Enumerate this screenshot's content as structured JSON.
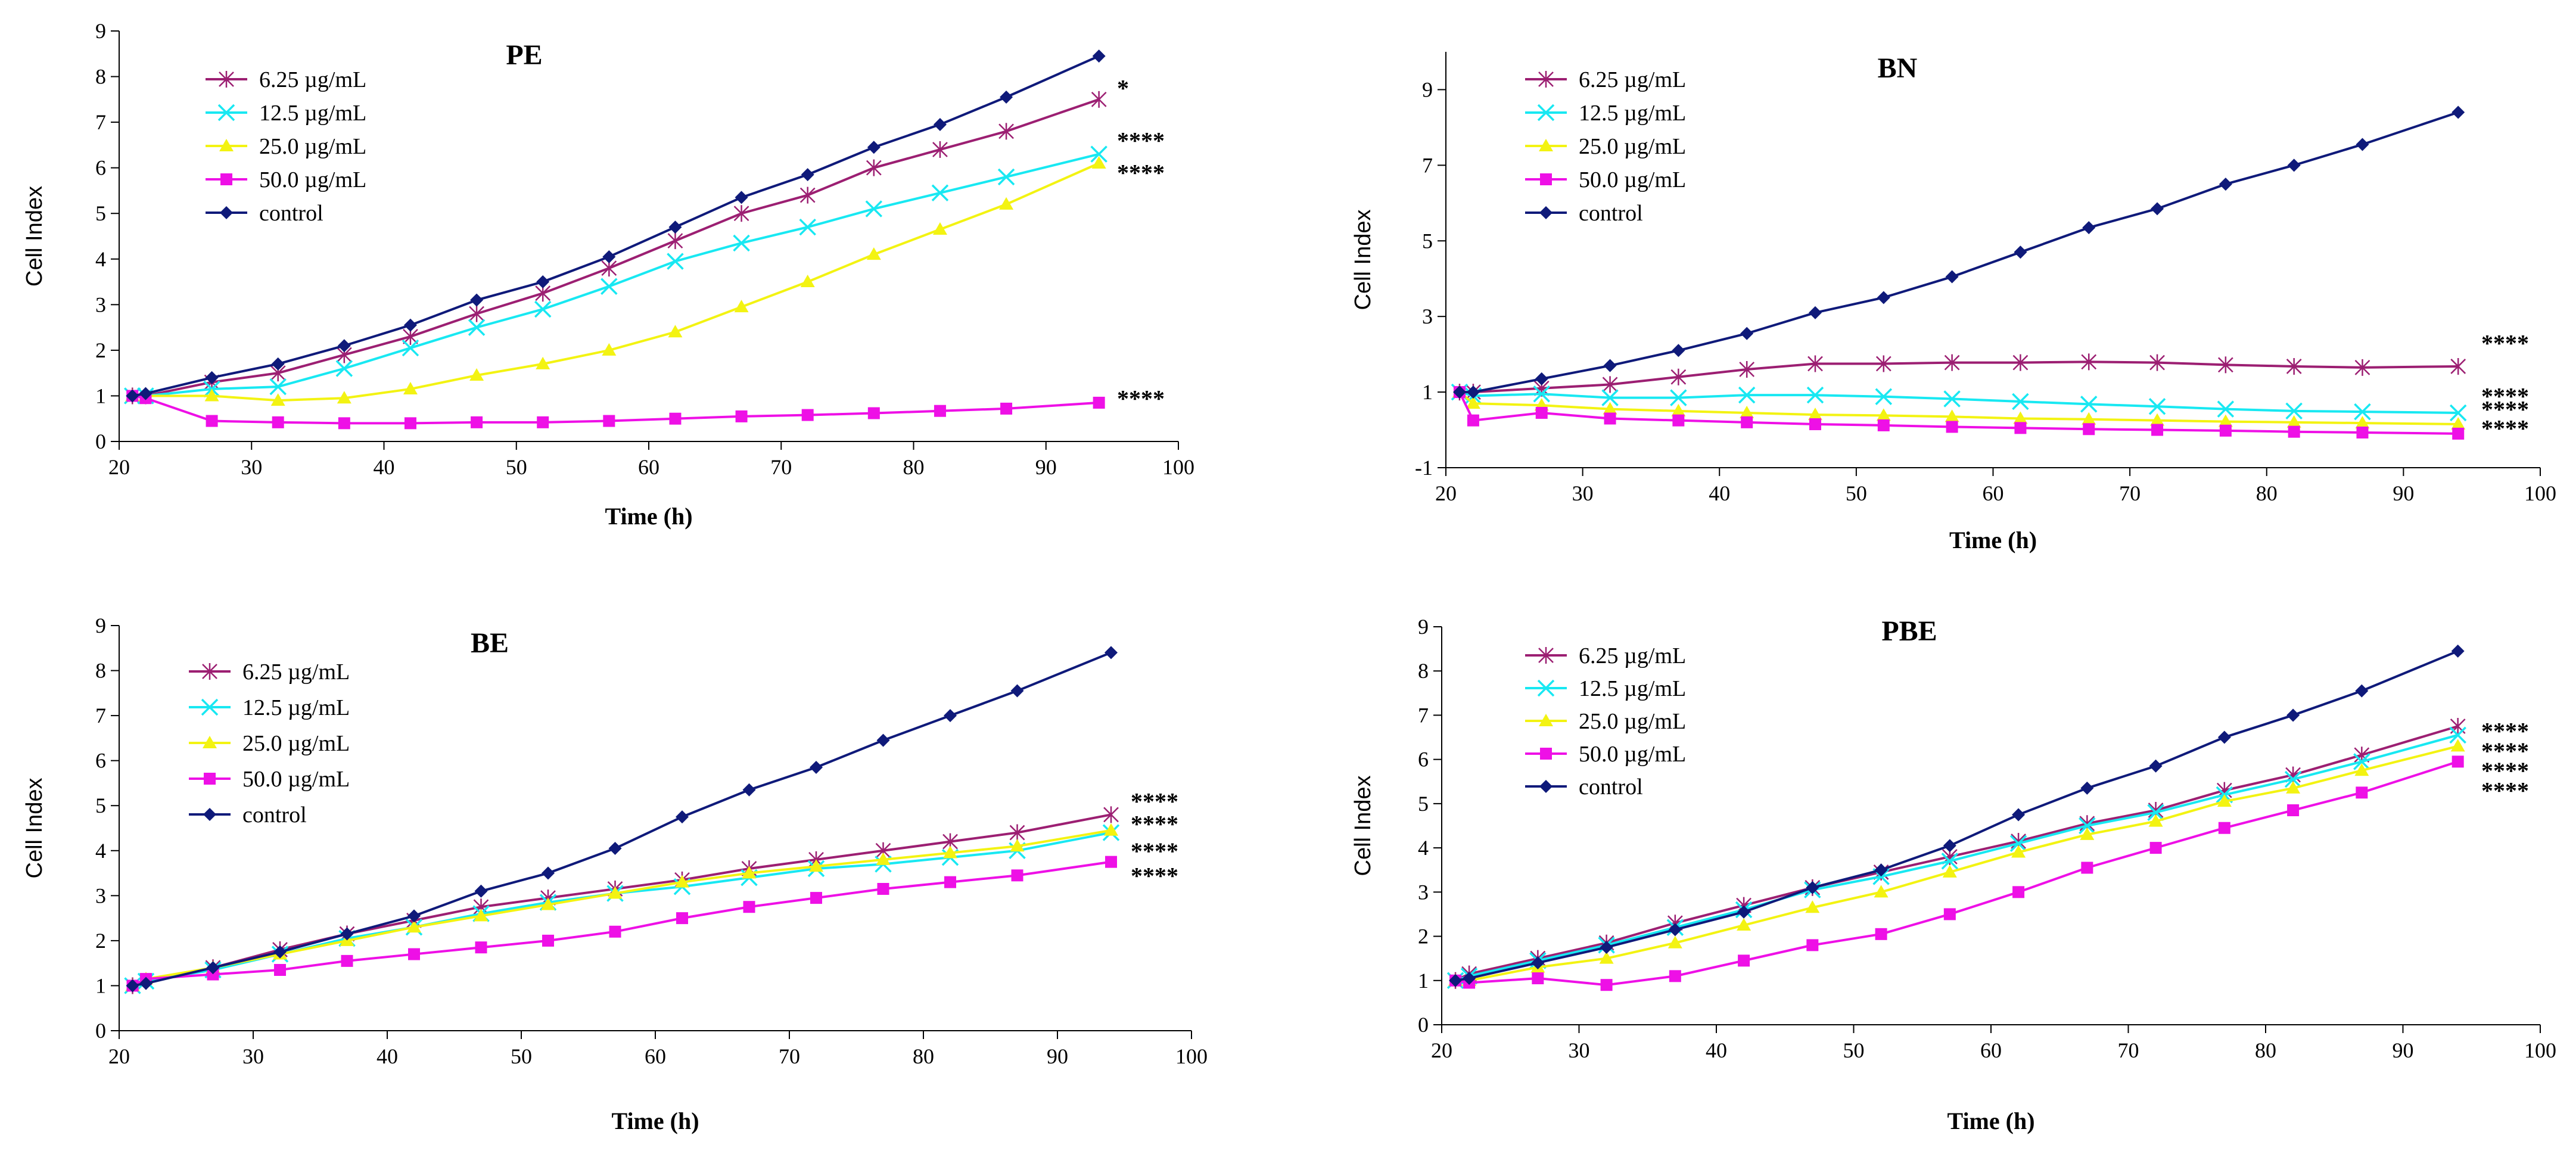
{
  "colors": {
    "6.25": "#9C1F72",
    "12.5": "#18E8F2",
    "25.0": "#F3F312",
    "50.0": "#EE10E6",
    "control": "#0F1A7A"
  },
  "chart_data": [
    {
      "type": "line",
      "title": "PE",
      "xlabel": "Time (h)",
      "ylabel": "Cell Index",
      "xlim": [
        20,
        100
      ],
      "ylim": [
        0,
        9
      ],
      "xticks": [
        "20",
        "30",
        "40",
        "50",
        "60",
        "70",
        "80",
        "90",
        "100"
      ],
      "yticks": [
        "0",
        "1",
        "2",
        "3",
        "4",
        "5",
        "6",
        "7",
        "8",
        "9"
      ],
      "x": [
        21,
        22,
        27,
        32,
        37,
        42,
        47,
        52,
        57,
        62,
        67,
        72,
        77,
        82,
        87,
        94
      ],
      "series": [
        {
          "name": "6.25 µg/mL",
          "key": "6.25",
          "marker": "star",
          "values": [
            1.0,
            1.0,
            1.3,
            1.5,
            1.9,
            2.3,
            2.8,
            3.25,
            3.8,
            4.4,
            5.0,
            5.4,
            6.0,
            6.4,
            6.8,
            7.5
          ]
        },
        {
          "name": "12.5 µg/mL",
          "key": "12.5",
          "marker": "x",
          "values": [
            1.0,
            1.0,
            1.15,
            1.2,
            1.6,
            2.05,
            2.5,
            2.9,
            3.4,
            3.95,
            4.35,
            4.7,
            5.1,
            5.45,
            5.8,
            6.3
          ]
        },
        {
          "name": "25.0 µg/mL",
          "key": "25.0",
          "marker": "triangle",
          "values": [
            1.0,
            1.0,
            1.0,
            0.9,
            0.95,
            1.15,
            1.45,
            1.7,
            2.0,
            2.4,
            2.95,
            3.5,
            4.1,
            4.65,
            5.2,
            6.1
          ]
        },
        {
          "name": "50.0 µg/mL",
          "key": "50.0",
          "marker": "square",
          "values": [
            1.0,
            0.95,
            0.45,
            0.42,
            0.4,
            0.4,
            0.42,
            0.42,
            0.45,
            0.5,
            0.55,
            0.58,
            0.62,
            0.67,
            0.72,
            0.85
          ]
        },
        {
          "name": "control",
          "key": "control",
          "marker": "diamond",
          "values": [
            1.0,
            1.05,
            1.4,
            1.7,
            2.1,
            2.55,
            3.1,
            3.5,
            4.05,
            4.7,
            5.35,
            5.85,
            6.45,
            6.95,
            7.55,
            8.45
          ]
        }
      ],
      "significance": [
        {
          "label": "*",
          "value": 7.75
        },
        {
          "label": "****",
          "value": 6.6
        },
        {
          "label": "****",
          "value": 5.9
        },
        {
          "label": "****",
          "value": 0.95
        }
      ]
    },
    {
      "type": "line",
      "title": "BN",
      "xlabel": "Time (h)",
      "ylabel": "Cell Index",
      "xlim": [
        20,
        100
      ],
      "ylim": [
        -1,
        10
      ],
      "xticks": [
        "20",
        "30",
        "40",
        "50",
        "60",
        "70",
        "80",
        "90",
        "100"
      ],
      "yticks": [
        "-1",
        "1",
        "3",
        "5",
        "7",
        "9"
      ],
      "x": [
        21,
        22,
        27,
        32,
        37,
        42,
        47,
        52,
        57,
        62,
        67,
        72,
        77,
        82,
        87,
        94
      ],
      "series": [
        {
          "name": "6.25 µg/mL",
          "key": "6.25",
          "marker": "star",
          "values": [
            1.0,
            1.0,
            1.1,
            1.2,
            1.4,
            1.6,
            1.75,
            1.75,
            1.78,
            1.78,
            1.8,
            1.78,
            1.72,
            1.68,
            1.65,
            1.68
          ]
        },
        {
          "name": "12.5 µg/mL",
          "key": "12.5",
          "marker": "x",
          "values": [
            1.0,
            0.9,
            0.95,
            0.85,
            0.85,
            0.92,
            0.92,
            0.88,
            0.82,
            0.75,
            0.68,
            0.62,
            0.55,
            0.5,
            0.48,
            0.45
          ]
        },
        {
          "name": "25.0 µg/mL",
          "key": "25.0",
          "marker": "triangle",
          "values": [
            1.0,
            0.7,
            0.65,
            0.55,
            0.5,
            0.45,
            0.4,
            0.38,
            0.35,
            0.3,
            0.28,
            0.25,
            0.22,
            0.2,
            0.18,
            0.15
          ]
        },
        {
          "name": "50.0 µg/mL",
          "key": "50.0",
          "marker": "square",
          "values": [
            1.0,
            0.25,
            0.45,
            0.3,
            0.25,
            0.2,
            0.15,
            0.12,
            0.08,
            0.05,
            0.02,
            0.0,
            -0.02,
            -0.05,
            -0.07,
            -0.1
          ]
        },
        {
          "name": "control",
          "key": "control",
          "marker": "diamond",
          "values": [
            1.0,
            1.0,
            1.35,
            1.7,
            2.1,
            2.55,
            3.1,
            3.5,
            4.05,
            4.7,
            5.35,
            5.85,
            6.5,
            7.0,
            7.55,
            8.4
          ]
        }
      ],
      "significance": [
        {
          "label": "****",
          "value": 2.3
        },
        {
          "label": "****",
          "value": 0.9
        },
        {
          "label": "****",
          "value": 0.55
        },
        {
          "label": "****",
          "value": 0.05
        }
      ]
    },
    {
      "type": "line",
      "title": "BE",
      "xlabel": "Time (h)",
      "ylabel": "Cell Index",
      "xlim": [
        20,
        100
      ],
      "ylim": [
        0,
        9
      ],
      "xticks": [
        "20",
        "30",
        "40",
        "50",
        "60",
        "70",
        "80",
        "90",
        "100"
      ],
      "yticks": [
        "0",
        "1",
        "2",
        "3",
        "4",
        "5",
        "6",
        "7",
        "8",
        "9"
      ],
      "x": [
        21,
        22,
        27,
        32,
        37,
        42,
        47,
        52,
        57,
        62,
        67,
        72,
        77,
        82,
        87,
        94
      ],
      "series": [
        {
          "name": "6.25 µg/mL",
          "key": "6.25",
          "marker": "star",
          "values": [
            1.0,
            1.1,
            1.4,
            1.8,
            2.15,
            2.45,
            2.75,
            2.95,
            3.15,
            3.35,
            3.6,
            3.8,
            4.0,
            4.2,
            4.4,
            4.8
          ]
        },
        {
          "name": "12.5 µg/mL",
          "key": "12.5",
          "marker": "x",
          "values": [
            1.0,
            1.1,
            1.35,
            1.7,
            2.05,
            2.3,
            2.6,
            2.85,
            3.05,
            3.2,
            3.4,
            3.6,
            3.7,
            3.85,
            4.0,
            4.4
          ]
        },
        {
          "name": "25.0 µg/mL",
          "key": "25.0",
          "marker": "triangle",
          "values": [
            1.0,
            1.15,
            1.4,
            1.7,
            2.0,
            2.3,
            2.55,
            2.8,
            3.05,
            3.3,
            3.5,
            3.65,
            3.8,
            3.95,
            4.1,
            4.45
          ]
        },
        {
          "name": "50.0 µg/mL",
          "key": "50.0",
          "marker": "square",
          "values": [
            1.0,
            1.15,
            1.25,
            1.35,
            1.55,
            1.7,
            1.85,
            2.0,
            2.2,
            2.5,
            2.75,
            2.95,
            3.15,
            3.3,
            3.45,
            3.75
          ]
        },
        {
          "name": "control",
          "key": "control",
          "marker": "diamond",
          "values": [
            1.0,
            1.05,
            1.4,
            1.75,
            2.15,
            2.55,
            3.1,
            3.5,
            4.05,
            4.75,
            5.35,
            5.85,
            6.45,
            7.0,
            7.55,
            8.4
          ]
        }
      ],
      "significance": [
        {
          "label": "****",
          "value": 5.1
        },
        {
          "label": "****",
          "value": 4.6
        },
        {
          "label": "****",
          "value": 4.0
        },
        {
          "label": "****",
          "value": 3.45
        }
      ]
    },
    {
      "type": "line",
      "title": "PBE",
      "xlabel": "Time (h)",
      "ylabel": "Cell Index",
      "xlim": [
        20,
        100
      ],
      "ylim": [
        0,
        9
      ],
      "xticks": [
        "20",
        "30",
        "40",
        "50",
        "60",
        "70",
        "80",
        "90",
        "100"
      ],
      "yticks": [
        "0",
        "1",
        "2",
        "3",
        "4",
        "5",
        "6",
        "7",
        "8",
        "9"
      ],
      "x": [
        21,
        22,
        27,
        32,
        37,
        42,
        47,
        52,
        57,
        62,
        67,
        72,
        77,
        82,
        87,
        94
      ],
      "series": [
        {
          "name": "6.25 µg/mL",
          "key": "6.25",
          "marker": "star",
          "values": [
            1.0,
            1.15,
            1.5,
            1.85,
            2.3,
            2.7,
            3.1,
            3.45,
            3.8,
            4.15,
            4.55,
            4.85,
            5.3,
            5.65,
            6.1,
            6.75
          ]
        },
        {
          "name": "12.5 µg/mL",
          "key": "12.5",
          "marker": "x",
          "values": [
            1.0,
            1.1,
            1.45,
            1.8,
            2.2,
            2.6,
            3.05,
            3.35,
            3.7,
            4.1,
            4.5,
            4.8,
            5.2,
            5.55,
            5.95,
            6.55
          ]
        },
        {
          "name": "25.0 µg/mL",
          "key": "25.0",
          "marker": "triangle",
          "values": [
            1.0,
            1.0,
            1.3,
            1.5,
            1.85,
            2.25,
            2.65,
            3.0,
            3.45,
            3.9,
            4.3,
            4.6,
            5.05,
            5.35,
            5.75,
            6.3
          ]
        },
        {
          "name": "50.0 µg/mL",
          "key": "50.0",
          "marker": "square",
          "values": [
            1.0,
            0.95,
            1.05,
            0.9,
            1.1,
            1.45,
            1.8,
            2.05,
            2.5,
            3.0,
            3.55,
            4.0,
            4.45,
            4.85,
            5.25,
            5.95
          ]
        },
        {
          "name": "control",
          "key": "control",
          "marker": "diamond",
          "values": [
            1.0,
            1.05,
            1.4,
            1.75,
            2.15,
            2.55,
            3.1,
            3.5,
            4.05,
            4.75,
            5.35,
            5.85,
            6.5,
            7.0,
            7.55,
            8.45
          ]
        }
      ],
      "significance": [
        {
          "label": "****",
          "value": 6.65
        },
        {
          "label": "****",
          "value": 6.2
        },
        {
          "label": "****",
          "value": 5.75
        },
        {
          "label": "****",
          "value": 5.3
        }
      ]
    }
  ]
}
